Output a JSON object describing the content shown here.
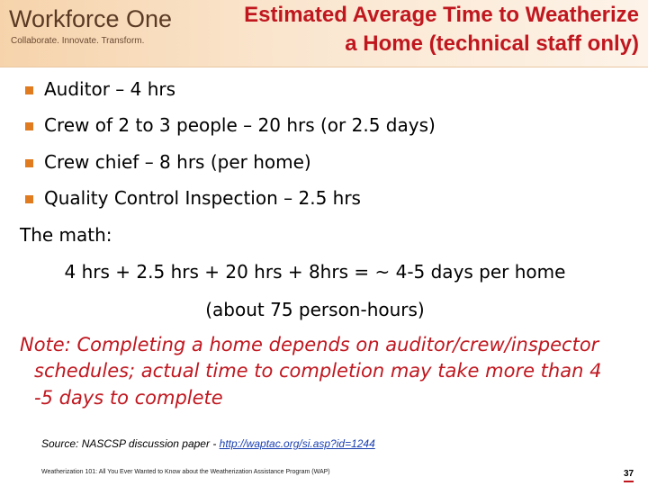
{
  "header": {
    "logo": {
      "name": "Workforce One",
      "tagline": "Collaborate.  Innovate.  Transform."
    },
    "title_lines": [
      "Estimated Average Time to Weatherize",
      "a Home (technical staff only)"
    ]
  },
  "bullets": [
    "Auditor – 4 hrs",
    "Crew of 2 to 3 people – 20 hrs (or 2.5 days)",
    "Crew chief – 8 hrs (per home)",
    "Quality Control Inspection – 2.5 hrs"
  ],
  "math": {
    "label": "The math:",
    "equation": "4 hrs + 2.5 hrs + 20 hrs + 8hrs = ~ 4-5 days per home",
    "note": "(about 75 person-hours)"
  },
  "note_lines": [
    "Note: Completing a home depends on auditor/crew/inspector",
    "schedules; actual time to completion may take more than 4",
    "-5 days to complete"
  ],
  "source": {
    "text": "Source: NASCSP discussion paper - ",
    "link": "http://waptac.org/si.asp?id=1244"
  },
  "footer": {
    "text": "Weatherization 101: All You Ever Wanted to Know about the Weatherization Assistance Program (WAP)",
    "page": "37"
  }
}
